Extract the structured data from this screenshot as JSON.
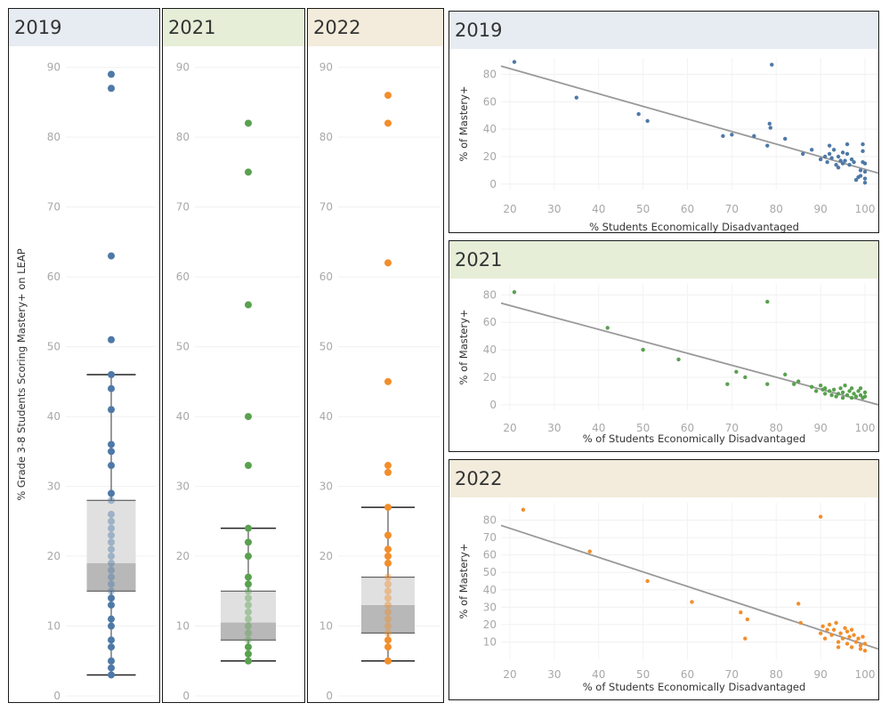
{
  "colors": {
    "2019": "#4e79a7",
    "2021": "#59a14f",
    "2022": "#f28e2b",
    "header_2019": "#e6ecf1",
    "header_2021": "#e6eed8",
    "header_2022": "#f3ecdc",
    "trend": "#999999"
  },
  "chart_data": [
    {
      "type": "box",
      "title": "2019",
      "ylabel": "% Grade 3-8 Students Scoring Mastery+ on LEAP",
      "ylim": [
        0,
        92
      ],
      "yticks": [
        0,
        10,
        20,
        30,
        40,
        50,
        60,
        70,
        80,
        90
      ],
      "points": [
        89,
        87,
        63,
        51,
        46,
        44,
        41,
        36,
        35,
        33,
        29,
        28,
        26,
        25,
        24,
        23,
        22,
        21,
        20,
        19,
        18,
        17,
        16,
        15,
        14,
        13,
        11,
        10,
        8,
        7,
        5,
        4,
        3
      ],
      "box": {
        "whisker_low": 3,
        "q1": 15,
        "median": 19,
        "q3": 28,
        "whisker_high": 46
      }
    },
    {
      "type": "box",
      "title": "2021",
      "ylim": [
        0,
        92
      ],
      "yticks": [
        0,
        10,
        20,
        30,
        40,
        50,
        60,
        70,
        80,
        90
      ],
      "points": [
        82,
        75,
        56,
        40,
        33,
        24,
        22,
        20,
        17,
        16,
        15,
        14,
        13,
        12,
        11,
        10,
        9,
        8,
        7,
        6,
        5
      ],
      "box": {
        "whisker_low": 5,
        "q1": 8,
        "median": 10.5,
        "q3": 15,
        "whisker_high": 24
      }
    },
    {
      "type": "box",
      "title": "2022",
      "ylim": [
        0,
        92
      ],
      "yticks": [
        0,
        10,
        20,
        30,
        40,
        50,
        60,
        70,
        80,
        90
      ],
      "points": [
        86,
        82,
        62,
        45,
        33,
        32,
        27,
        23,
        21,
        20,
        19,
        17,
        16,
        15,
        14,
        13,
        12,
        11,
        10,
        9,
        8,
        7,
        5
      ],
      "box": {
        "whisker_low": 5,
        "q1": 9,
        "median": 13,
        "q3": 17,
        "whisker_high": 27
      }
    },
    {
      "type": "scatter",
      "title": "2019",
      "xlabel": "% Students Economically Disadvantaged",
      "ylabel": "% of Mastery+",
      "xlim": [
        18,
        103
      ],
      "ylim": [
        -4,
        92
      ],
      "xticks": [
        20,
        30,
        40,
        50,
        60,
        70,
        80,
        90,
        100
      ],
      "yticks": [
        0,
        20,
        40,
        60,
        80
      ],
      "trend": [
        [
          18,
          86
        ],
        [
          103,
          8
        ]
      ],
      "points": [
        [
          21,
          89
        ],
        [
          35,
          63
        ],
        [
          49,
          51
        ],
        [
          51,
          46
        ],
        [
          68,
          35
        ],
        [
          70,
          36
        ],
        [
          75,
          35
        ],
        [
          78,
          28
        ],
        [
          78.5,
          44
        ],
        [
          78.7,
          41
        ],
        [
          79,
          87
        ],
        [
          82,
          33
        ],
        [
          86,
          22
        ],
        [
          88,
          25
        ],
        [
          90,
          18
        ],
        [
          91,
          20
        ],
        [
          91.5,
          16
        ],
        [
          92,
          28
        ],
        [
          92,
          22
        ],
        [
          92.5,
          19
        ],
        [
          93,
          25
        ],
        [
          93.5,
          14
        ],
        [
          94,
          20
        ],
        [
          94,
          12
        ],
        [
          94.5,
          17
        ],
        [
          95,
          23
        ],
        [
          95,
          15
        ],
        [
          95.5,
          17
        ],
        [
          96,
          29
        ],
        [
          96,
          22
        ],
        [
          96.5,
          14
        ],
        [
          97,
          18
        ],
        [
          97.5,
          16
        ],
        [
          98,
          3
        ],
        [
          98.5,
          5
        ],
        [
          99,
          10
        ],
        [
          99,
          6
        ],
        [
          99.5,
          29
        ],
        [
          99.5,
          24
        ],
        [
          99.5,
          16
        ],
        [
          100,
          15
        ],
        [
          100,
          9
        ],
        [
          100,
          4
        ],
        [
          100,
          1
        ]
      ]
    },
    {
      "type": "scatter",
      "title": "2021",
      "xlabel": "% of Students Economically Disadvantaged",
      "ylabel": "% of Mastery+",
      "xlim": [
        18,
        103
      ],
      "ylim": [
        -4,
        88
      ],
      "xticks": [
        20,
        30,
        40,
        50,
        60,
        70,
        80,
        90,
        100
      ],
      "yticks": [
        0,
        20,
        40,
        60,
        80
      ],
      "trend": [
        [
          18,
          74
        ],
        [
          103,
          0
        ]
      ],
      "points": [
        [
          21,
          82
        ],
        [
          42,
          56
        ],
        [
          50,
          40
        ],
        [
          58,
          33
        ],
        [
          69,
          15
        ],
        [
          71,
          24
        ],
        [
          73,
          20
        ],
        [
          78,
          15
        ],
        [
          78,
          75
        ],
        [
          82,
          22
        ],
        [
          84,
          15
        ],
        [
          85,
          17
        ],
        [
          88,
          13
        ],
        [
          89,
          10
        ],
        [
          90,
          14
        ],
        [
          90.5,
          11
        ],
        [
          91,
          12
        ],
        [
          91,
          8
        ],
        [
          92,
          10
        ],
        [
          92.5,
          7
        ],
        [
          93,
          11
        ],
        [
          93.5,
          6
        ],
        [
          94,
          8
        ],
        [
          94.5,
          12
        ],
        [
          95,
          5
        ],
        [
          95,
          9
        ],
        [
          95.5,
          14
        ],
        [
          96,
          7
        ],
        [
          96.5,
          10
        ],
        [
          97,
          5
        ],
        [
          97,
          12
        ],
        [
          97.5,
          8
        ],
        [
          98,
          6
        ],
        [
          98.5,
          10
        ],
        [
          99,
          7
        ],
        [
          99,
          12
        ],
        [
          99.5,
          5
        ],
        [
          100,
          9
        ],
        [
          100,
          6
        ]
      ]
    },
    {
      "type": "scatter",
      "title": "2022",
      "xlabel": "% of Students Economically Disadvantaged",
      "ylabel": "% of Mastery+",
      "xlim": [
        18,
        103
      ],
      "ylim": [
        0,
        90
      ],
      "xticks": [
        20,
        30,
        40,
        50,
        60,
        70,
        80,
        90,
        100
      ],
      "yticks": [
        10,
        20,
        30,
        40,
        50,
        60,
        70,
        80
      ],
      "trend": [
        [
          18,
          77
        ],
        [
          103,
          6
        ]
      ],
      "points": [
        [
          23,
          86
        ],
        [
          38,
          62
        ],
        [
          51,
          45
        ],
        [
          61,
          33
        ],
        [
          72,
          27
        ],
        [
          73,
          12
        ],
        [
          73.5,
          23
        ],
        [
          85,
          32
        ],
        [
          85.5,
          21
        ],
        [
          90,
          82
        ],
        [
          90,
          15
        ],
        [
          90.5,
          19
        ],
        [
          91,
          12
        ],
        [
          91.5,
          17
        ],
        [
          92,
          20
        ],
        [
          92.5,
          14
        ],
        [
          93,
          17
        ],
        [
          93.5,
          21
        ],
        [
          94,
          10
        ],
        [
          94,
          7
        ],
        [
          94.5,
          15
        ],
        [
          95,
          12
        ],
        [
          95.5,
          18
        ],
        [
          96,
          9
        ],
        [
          96,
          16
        ],
        [
          96.5,
          13
        ],
        [
          97,
          17
        ],
        [
          97,
          7
        ],
        [
          97.5,
          14
        ],
        [
          98,
          10
        ],
        [
          98.5,
          12
        ],
        [
          99,
          8
        ],
        [
          99,
          6
        ],
        [
          99.5,
          13
        ],
        [
          100,
          9
        ],
        [
          100,
          5
        ]
      ]
    }
  ]
}
